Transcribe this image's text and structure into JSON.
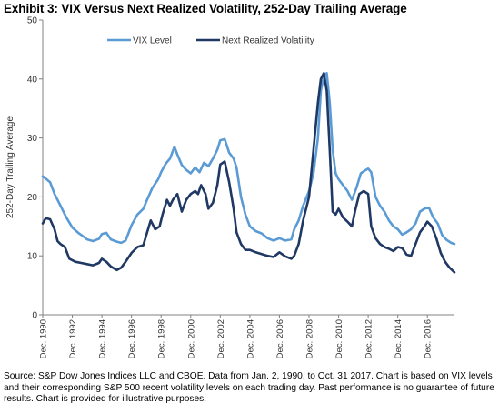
{
  "title": "Exhibit 3: VIX Versus Next Realized Volatility, 252-Day Trailing Average",
  "source_note": "Source: S&P Dow Jones Indices LLC and CBOE.  Data from Jan. 2, 1990, to Oct. 31 2017.  Chart is based on VIX levels and their corresponding S&P 500 recent volatility levels on each trading day.  Past performance is no guarantee of future results.  Chart is provided for illustrative purposes.",
  "chart_data": {
    "type": "line",
    "ylabel": "252-Day Trailing Average",
    "xlabel": "",
    "ylim": [
      0,
      50
    ],
    "yticks": [
      "0",
      "10",
      "20",
      "30",
      "40",
      "50"
    ],
    "xlim": [
      1990.0,
      2017.83
    ],
    "xticks": [
      {
        "x": 1990,
        "label": "Dec. 1990"
      },
      {
        "x": 1992,
        "label": "Dec. 1992"
      },
      {
        "x": 1994,
        "label": "Dec. 1994"
      },
      {
        "x": 1996,
        "label": "Dec. 1996"
      },
      {
        "x": 1998,
        "label": "Dec. 1998"
      },
      {
        "x": 2000,
        "label": "Dec. 2000"
      },
      {
        "x": 2002,
        "label": "Dec. 2002"
      },
      {
        "x": 2004,
        "label": "Dec. 2004"
      },
      {
        "x": 2006,
        "label": "Dec. 2006"
      },
      {
        "x": 2008,
        "label": "Dec. 2008"
      },
      {
        "x": 2010,
        "label": "Dec. 2010"
      },
      {
        "x": 2012,
        "label": "Dec. 2012"
      },
      {
        "x": 2014,
        "label": "Dec. 2014"
      },
      {
        "x": 2016,
        "label": "Dec. 2016"
      }
    ],
    "grid": false,
    "legend_position": "top-center",
    "series": [
      {
        "name": "VIX Level",
        "color": "#5b9bd5",
        "x": [
          1990.0,
          1990.2,
          1990.5,
          1990.8,
          1991.0,
          1991.3,
          1991.6,
          1992.0,
          1992.4,
          1992.8,
          1993.0,
          1993.4,
          1993.8,
          1994.0,
          1994.3,
          1994.6,
          1995.0,
          1995.3,
          1995.6,
          1996.0,
          1996.4,
          1996.8,
          1997.0,
          1997.4,
          1997.8,
          1998.0,
          1998.3,
          1998.6,
          1998.9,
          1999.1,
          1999.4,
          1999.7,
          2000.0,
          2000.3,
          2000.6,
          2000.9,
          2001.2,
          2001.5,
          2001.8,
          2002.0,
          2002.3,
          2002.6,
          2002.9,
          2003.1,
          2003.4,
          2003.7,
          2004.0,
          2004.4,
          2004.8,
          2005.2,
          2005.6,
          2006.0,
          2006.4,
          2006.8,
          2007.0,
          2007.3,
          2007.6,
          2008.0,
          2008.3,
          2008.6,
          2008.8,
          2009.0,
          2009.2,
          2009.4,
          2009.6,
          2009.8,
          2010.0,
          2010.3,
          2010.6,
          2010.9,
          2011.2,
          2011.5,
          2011.8,
          2012.0,
          2012.2,
          2012.5,
          2012.8,
          2013.1,
          2013.4,
          2013.7,
          2014.0,
          2014.3,
          2014.6,
          2014.9,
          2015.2,
          2015.5,
          2015.8,
          2016.1,
          2016.4,
          2016.7,
          2017.0,
          2017.3,
          2017.6,
          2017.83
        ],
        "y": [
          23.5,
          23.1,
          22.5,
          20.5,
          19.5,
          18.0,
          16.5,
          14.8,
          13.9,
          13.2,
          12.8,
          12.5,
          12.9,
          13.7,
          13.9,
          12.8,
          12.4,
          12.2,
          12.6,
          15.2,
          17.0,
          18.0,
          19.2,
          21.5,
          23.0,
          24.2,
          25.6,
          26.5,
          28.5,
          27.2,
          25.4,
          24.6,
          24.0,
          25.0,
          24.2,
          25.8,
          25.2,
          26.5,
          28.0,
          29.6,
          29.8,
          27.5,
          26.5,
          25.0,
          20.0,
          17.0,
          15.0,
          14.2,
          13.8,
          13.0,
          12.6,
          13.0,
          12.6,
          12.8,
          14.5,
          16.0,
          18.5,
          21.0,
          24.0,
          30.0,
          38.0,
          40.5,
          41.0,
          36.0,
          28.0,
          24.0,
          23.0,
          22.0,
          21.0,
          19.5,
          21.5,
          24.0,
          24.5,
          24.8,
          24.2,
          20.0,
          18.5,
          17.5,
          16.0,
          15.0,
          14.5,
          13.6,
          14.0,
          14.5,
          15.5,
          17.5,
          18.0,
          18.2,
          16.5,
          15.5,
          13.5,
          12.7,
          12.2,
          12.0
        ],
        "width": 2.6
      },
      {
        "name": "Next Realized Volatility",
        "color": "#1f3864",
        "x": [
          1990.0,
          1990.2,
          1990.5,
          1990.8,
          1991.0,
          1991.2,
          1991.5,
          1991.8,
          1992.2,
          1992.6,
          1993.0,
          1993.4,
          1993.8,
          1994.0,
          1994.3,
          1994.6,
          1995.0,
          1995.3,
          1995.6,
          1996.0,
          1996.4,
          1996.8,
          1997.0,
          1997.3,
          1997.6,
          1997.9,
          1998.1,
          1998.4,
          1998.6,
          1998.8,
          1999.1,
          1999.4,
          1999.7,
          2000.0,
          2000.3,
          2000.5,
          2000.7,
          2001.0,
          2001.2,
          2001.5,
          2001.8,
          2002.0,
          2002.3,
          2002.6,
          2002.9,
          2003.1,
          2003.4,
          2003.7,
          2004.0,
          2004.4,
          2004.8,
          2005.2,
          2005.6,
          2006.0,
          2006.4,
          2006.8,
          2007.0,
          2007.3,
          2007.6,
          2008.0,
          2008.3,
          2008.6,
          2008.8,
          2009.0,
          2009.2,
          2009.4,
          2009.6,
          2009.8,
          2010.0,
          2010.3,
          2010.6,
          2010.9,
          2011.1,
          2011.4,
          2011.7,
          2012.0,
          2012.2,
          2012.5,
          2012.8,
          2013.1,
          2013.4,
          2013.7,
          2014.0,
          2014.3,
          2014.6,
          2014.9,
          2015.2,
          2015.5,
          2015.8,
          2016.0,
          2016.3,
          2016.6,
          2016.9,
          2017.2,
          2017.5,
          2017.83
        ],
        "y": [
          15.5,
          16.4,
          16.2,
          14.5,
          12.5,
          12.0,
          11.5,
          9.5,
          9.0,
          8.8,
          8.6,
          8.4,
          8.8,
          9.5,
          9.0,
          8.2,
          7.6,
          8.0,
          9.0,
          10.5,
          11.5,
          11.8,
          13.5,
          16.0,
          14.5,
          15.0,
          17.0,
          19.5,
          18.5,
          19.5,
          20.5,
          17.5,
          19.5,
          20.5,
          21.0,
          20.5,
          22.0,
          20.5,
          18.0,
          19.0,
          22.0,
          25.5,
          26.0,
          22.5,
          18.0,
          14.0,
          12.0,
          11.0,
          11.0,
          10.6,
          10.3,
          10.0,
          9.8,
          10.6,
          9.9,
          9.5,
          10.0,
          12.0,
          16.0,
          20.0,
          28.0,
          36.0,
          40.0,
          41.0,
          38.0,
          28.0,
          17.5,
          17.0,
          18.0,
          16.5,
          15.8,
          15.0,
          17.5,
          20.5,
          21.0,
          20.5,
          15.0,
          13.0,
          12.0,
          11.5,
          11.2,
          10.8,
          11.5,
          11.3,
          10.2,
          10.0,
          12.0,
          14.0,
          15.0,
          15.8,
          15.0,
          13.0,
          10.5,
          9.0,
          8.0,
          7.2
        ],
        "width": 2.6
      }
    ]
  }
}
